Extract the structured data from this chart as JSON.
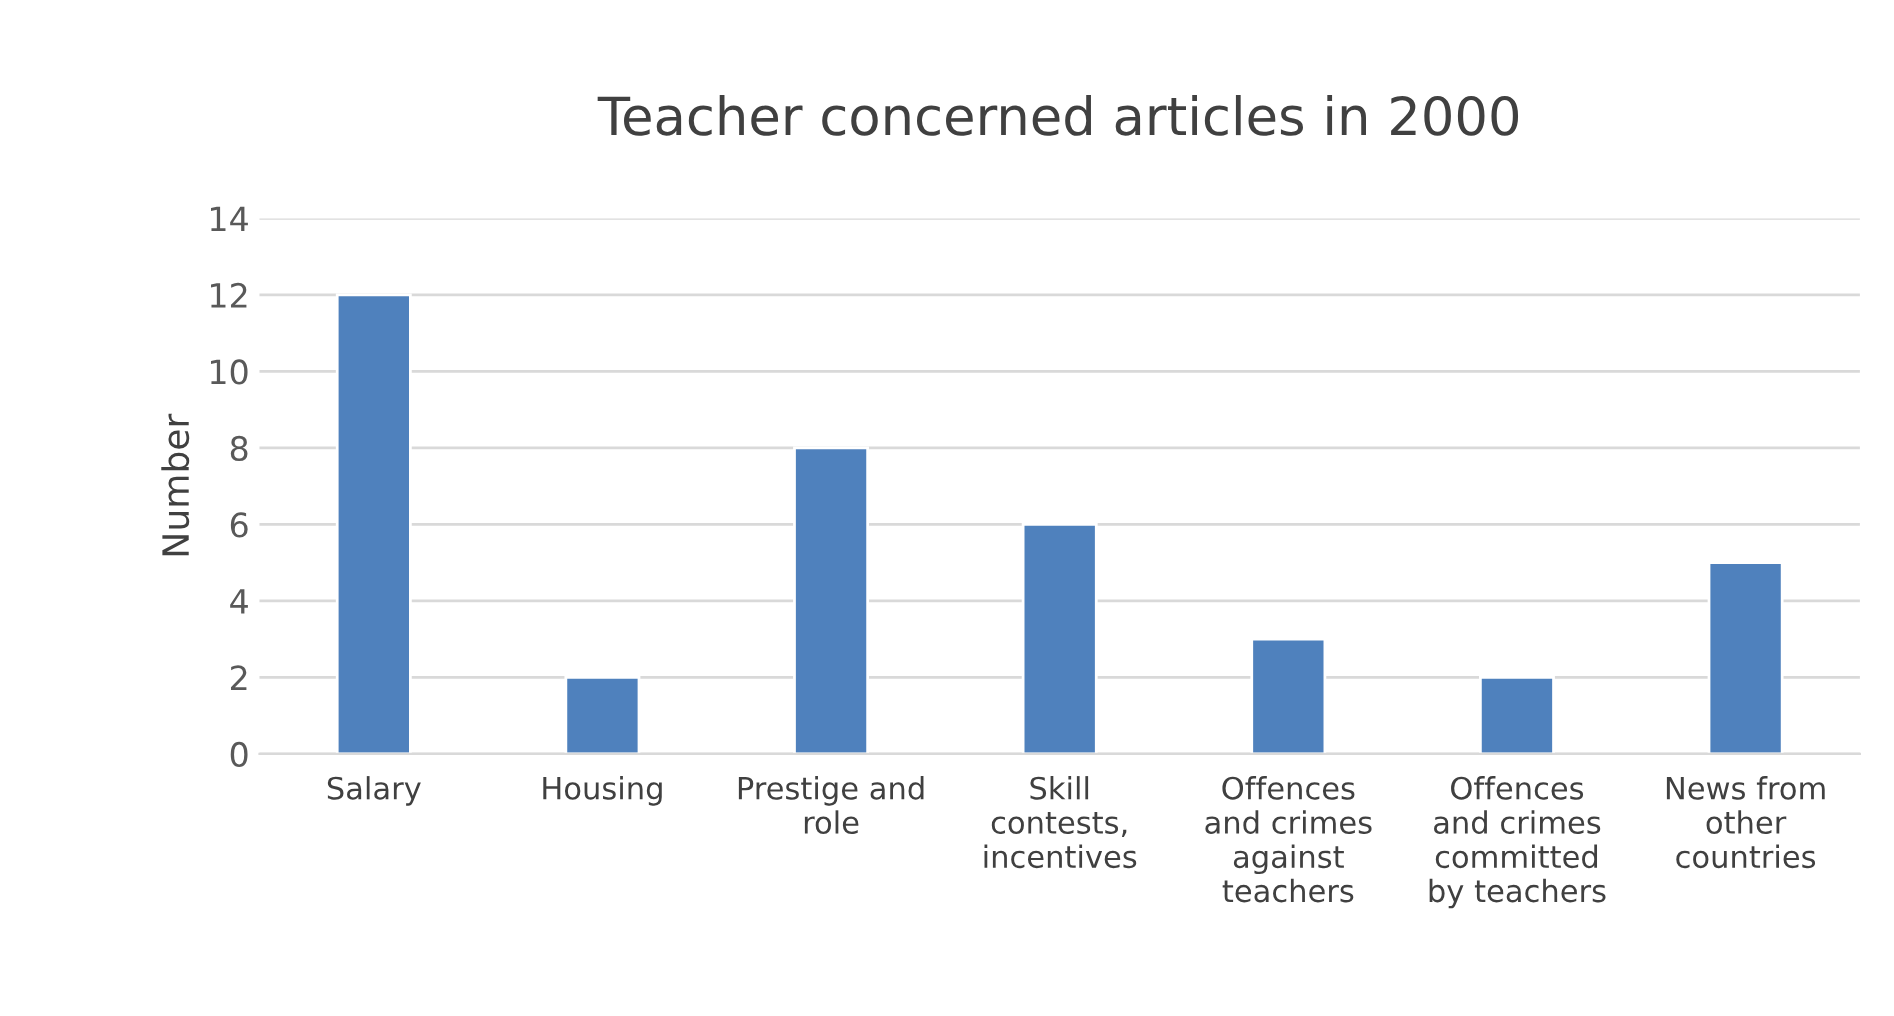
{
  "chart_data": {
    "type": "bar",
    "title": "Teacher concerned articles in 2000",
    "ylabel": "Number",
    "categories": [
      "Salary",
      "Housing",
      "Prestige and\nrole",
      "Skill\ncontests,\nincentives",
      "Offences\nand crimes\nagainst\nteachers",
      "Offences\nand crimes\ncommitted\nby teachers",
      "News from\nother\ncountries"
    ],
    "values": [
      12,
      2,
      8,
      6,
      3,
      2,
      5
    ],
    "color": "#4f81bd",
    "ylim": [
      0,
      14
    ],
    "yticks": [
      0,
      2,
      4,
      6,
      8,
      10,
      12,
      14
    ],
    "grid": "y",
    "legend": false
  }
}
